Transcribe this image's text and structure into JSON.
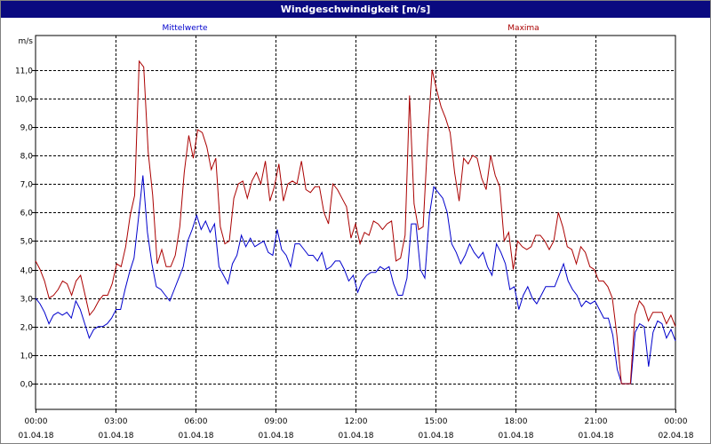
{
  "window": {
    "title": "Windgeschwindigkeit [m/s]"
  },
  "chart_data": {
    "type": "line",
    "title": "Windgeschwindigkeit [m/s]",
    "ylabel": "m/s",
    "ylim": [
      -0.9,
      12.2
    ],
    "yticks": [
      "0,0",
      "1,0",
      "2,0",
      "3,0",
      "4,0",
      "5,0",
      "6,0",
      "7,0",
      "8,0",
      "9,0",
      "10,0",
      "11,0"
    ],
    "xlim": [
      0,
      24
    ],
    "xticks": [
      {
        "time": "00:00",
        "date": "01.04.18"
      },
      {
        "time": "03:00",
        "date": "01.04.18"
      },
      {
        "time": "06:00",
        "date": "01.04.18"
      },
      {
        "time": "09:00",
        "date": "01.04.18"
      },
      {
        "time": "12:00",
        "date": "01.04.18"
      },
      {
        "time": "15:00",
        "date": "01.04.18"
      },
      {
        "time": "18:00",
        "date": "01.04.18"
      },
      {
        "time": "21:00",
        "date": "01.04.18"
      },
      {
        "time": "00:00",
        "date": "02.04.18"
      }
    ],
    "grid": true,
    "series": [
      {
        "name": "Mittelwerte",
        "color": "#0000cc",
        "values": [
          3.0,
          2.8,
          2.5,
          2.1,
          2.4,
          2.5,
          2.4,
          2.5,
          2.3,
          2.9,
          2.6,
          2.1,
          1.6,
          1.9,
          2.0,
          2.0,
          2.1,
          2.3,
          2.6,
          2.6,
          3.3,
          3.9,
          4.4,
          5.8,
          7.3,
          5.3,
          4.2,
          3.4,
          3.3,
          3.1,
          2.9,
          3.3,
          3.7,
          4.1,
          5.0,
          5.4,
          5.9,
          5.4,
          5.7,
          5.3,
          5.6,
          4.1,
          3.8,
          3.5,
          4.2,
          4.5,
          5.2,
          4.8,
          5.1,
          4.8,
          4.9,
          5.0,
          4.6,
          4.5,
          5.4,
          4.7,
          4.5,
          4.1,
          4.9,
          4.9,
          4.7,
          4.5,
          4.5,
          4.3,
          4.6,
          4.0,
          4.1,
          4.3,
          4.3,
          4.0,
          3.6,
          3.8,
          3.2,
          3.6,
          3.8,
          3.9,
          3.9,
          4.1,
          4.0,
          4.1,
          3.5,
          3.1,
          3.1,
          3.7,
          5.6,
          5.6,
          4.0,
          3.7,
          5.9,
          6.9,
          6.7,
          6.5,
          6.0,
          4.9,
          4.6,
          4.2,
          4.5,
          4.9,
          4.6,
          4.4,
          4.6,
          4.1,
          3.8,
          4.9,
          4.6,
          4.2,
          3.3,
          3.4,
          2.6,
          3.1,
          3.4,
          3.0,
          2.8,
          3.1,
          3.4,
          3.4,
          3.4,
          3.8,
          4.2,
          3.6,
          3.3,
          3.1,
          2.7,
          2.9,
          2.8,
          2.9,
          2.6,
          2.3,
          2.3,
          1.7,
          0.5,
          0.0,
          0.0,
          0.0,
          1.8,
          2.1,
          2.0,
          0.6,
          1.8,
          2.2,
          2.1,
          1.6,
          1.9,
          1.5
        ]
      },
      {
        "name": "Maxima",
        "color": "#aa0000",
        "values": [
          4.3,
          4.0,
          3.6,
          3.0,
          3.1,
          3.3,
          3.6,
          3.5,
          3.1,
          3.6,
          3.8,
          3.1,
          2.4,
          2.6,
          2.9,
          3.1,
          3.1,
          3.5,
          4.2,
          4.1,
          4.8,
          5.9,
          6.6,
          11.3,
          11.1,
          8.1,
          6.6,
          4.2,
          4.7,
          4.1,
          4.1,
          4.5,
          5.5,
          7.4,
          8.7,
          7.9,
          8.9,
          8.8,
          8.3,
          7.5,
          7.9,
          5.5,
          4.9,
          5.0,
          6.5,
          7.0,
          7.1,
          6.5,
          7.1,
          7.4,
          7.0,
          7.8,
          6.4,
          6.9,
          7.7,
          6.4,
          7.0,
          7.1,
          7.0,
          7.8,
          6.8,
          6.7,
          6.9,
          6.9,
          6.0,
          5.6,
          7.0,
          6.8,
          6.5,
          6.2,
          5.1,
          5.6,
          4.9,
          5.3,
          5.2,
          5.7,
          5.6,
          5.4,
          5.6,
          5.7,
          4.3,
          4.4,
          5.2,
          10.1,
          6.3,
          5.4,
          5.5,
          8.5,
          11.0,
          10.3,
          9.7,
          9.3,
          8.8,
          7.4,
          6.4,
          7.9,
          7.7,
          8.0,
          7.9,
          7.2,
          6.8,
          8.0,
          7.3,
          6.9,
          5.0,
          5.3,
          4.0,
          5.0,
          4.8,
          4.7,
          4.8,
          5.2,
          5.2,
          5.0,
          4.7,
          5.0,
          6.0,
          5.5,
          4.8,
          4.7,
          4.2,
          4.8,
          4.6,
          4.1,
          4.0,
          3.6,
          3.6,
          3.4,
          3.0,
          1.7,
          0.0,
          0.0,
          0.0,
          2.4,
          2.9,
          2.7,
          2.2,
          2.5,
          2.5,
          2.5,
          2.1,
          2.4,
          2.0
        ]
      }
    ]
  }
}
